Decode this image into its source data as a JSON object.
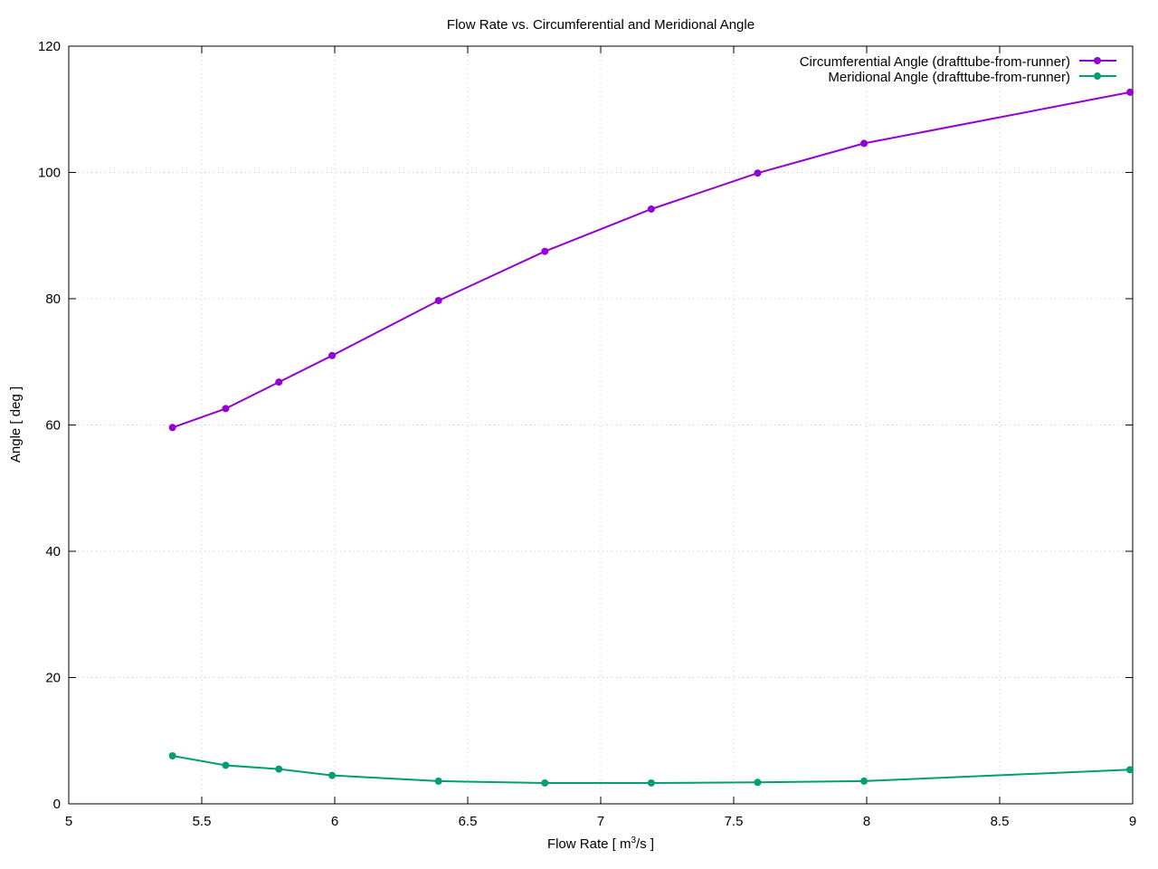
{
  "chart_data": {
    "type": "line",
    "title": "Flow Rate vs. Circumferential and Meridional Angle",
    "xlabel": {
      "prefix": "Flow Rate [ m",
      "sup": "3",
      "suffix": "/s ]"
    },
    "ylabel": "Angle [ deg ]",
    "xlim": [
      5,
      9
    ],
    "ylim": [
      0,
      120
    ],
    "xticks": [
      5,
      5.5,
      6,
      6.5,
      7,
      7.5,
      8,
      8.5,
      9
    ],
    "xtick_labels": [
      "5",
      "5.5",
      "6",
      "6.5",
      "7",
      "7.5",
      "8",
      "8.5",
      "9"
    ],
    "yticks": [
      0,
      20,
      40,
      60,
      80,
      100,
      120
    ],
    "ytick_labels": [
      "0",
      "20",
      "40",
      "60",
      "80",
      "100",
      "120"
    ],
    "grid": true,
    "legend_position": "top-right",
    "series": [
      {
        "name": "Circumferential Angle (drafttube-from-runner)",
        "color": "#9400d3",
        "x": [
          5.39,
          5.59,
          5.79,
          5.99,
          6.39,
          6.79,
          7.19,
          7.59,
          7.99,
          8.99
        ],
        "y": [
          59.6,
          62.6,
          66.8,
          71.0,
          79.7,
          87.5,
          94.2,
          99.9,
          104.6,
          112.7
        ]
      },
      {
        "name": "Meridional Angle (drafttube-from-runner)",
        "color": "#009e73",
        "x": [
          5.39,
          5.59,
          5.79,
          5.99,
          6.39,
          6.79,
          7.19,
          7.59,
          7.99,
          8.99
        ],
        "y": [
          7.6,
          6.1,
          5.5,
          4.5,
          3.6,
          3.3,
          3.3,
          3.4,
          3.6,
          5.4
        ]
      }
    ]
  }
}
